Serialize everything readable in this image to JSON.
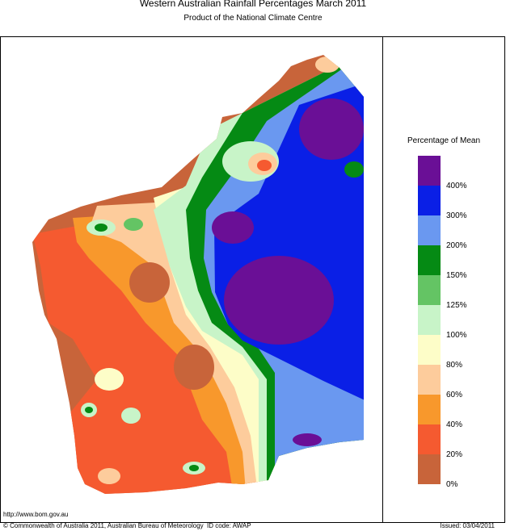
{
  "header": {
    "title": "Western Australian Rainfall Percentages March 2011",
    "subtitle": "Product of the National Climate Centre"
  },
  "legend": {
    "title": "Percentage of Mean",
    "labels": [
      "400%",
      "300%",
      "200%",
      "150%",
      "125%",
      "100%",
      "80%",
      "60%",
      "40%",
      "20%",
      "0%"
    ],
    "colors": [
      "#6a0f96",
      "#0a1fe6",
      "#6a98f0",
      "#058a14",
      "#64c464",
      "#c8f4c8",
      "#fdfdc8",
      "#fdcc9c",
      "#f8982c",
      "#f55a30",
      "#c8643a"
    ]
  },
  "footer": {
    "url": "http://www.bom.gov.au",
    "copyright": "© Commonwealth of Australia 2011, Australian Bureau of Meteorology",
    "id_code": "ID code: AWAP",
    "issued": "Issued: 03/04/2011"
  }
}
